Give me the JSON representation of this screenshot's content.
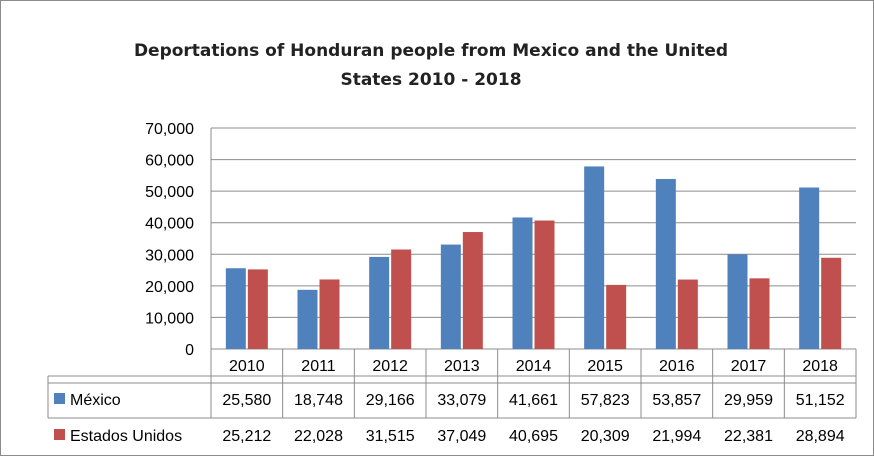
{
  "chart_data": {
    "type": "bar",
    "title": "Deportations of Honduran people from Mexico and the United States 2010 - 2018",
    "categories": [
      "2010",
      "2011",
      "2012",
      "2013",
      "2014",
      "2015",
      "2016",
      "2017",
      "2018"
    ],
    "series": [
      {
        "name": "México",
        "color": "#4f81bd",
        "values": [
          25580,
          18748,
          29166,
          33079,
          41661,
          57823,
          53857,
          29959,
          51152
        ],
        "labels": [
          "25,580",
          "18,748",
          "29,166",
          "33,079",
          "41,661",
          "57,823",
          "53,857",
          "29,959",
          "51,152"
        ]
      },
      {
        "name": "Estados Unidos",
        "color": "#c0504d",
        "values": [
          25212,
          22028,
          31515,
          37049,
          40695,
          20309,
          21994,
          22381,
          28894
        ],
        "labels": [
          "25,212",
          "22,028",
          "31,515",
          "37,049",
          "40,695",
          "20,309",
          "21,994",
          "22,381",
          "28,894"
        ]
      }
    ],
    "ylim": [
      0,
      70000
    ],
    "yticks": [
      "0",
      "10,000",
      "20,000",
      "30,000",
      "40,000",
      "50,000",
      "60,000",
      "70,000"
    ],
    "grid": true,
    "legend": "data table"
  }
}
